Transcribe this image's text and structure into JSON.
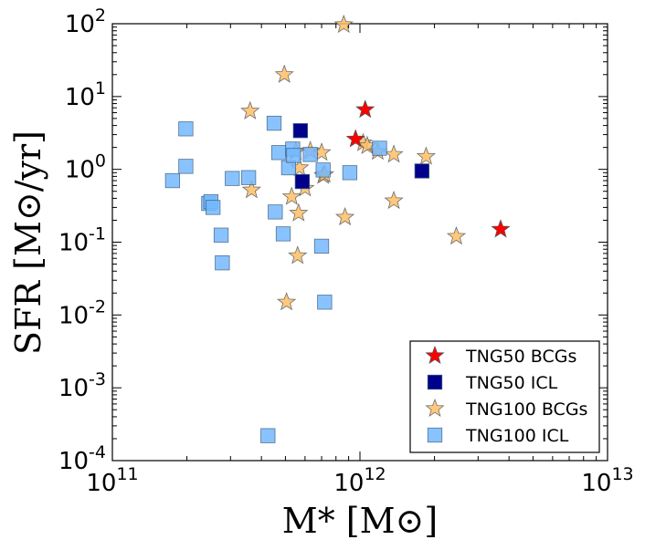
{
  "chart_data": {
    "type": "scatter",
    "title": "",
    "xlabel": "M* [M⊙]",
    "ylabel": "SFR [M⊙/yr]",
    "xscale": "log",
    "yscale": "log",
    "xlim": [
      100000000000.0,
      10000000000000.0
    ],
    "ylim": [
      0.0001,
      100
    ],
    "x_tick_labels": [
      {
        "value": 100000000000.0,
        "base": "10",
        "exp": "11"
      },
      {
        "value": 1000000000000.0,
        "base": "10",
        "exp": "12"
      },
      {
        "value": 10000000000000.0,
        "base": "10",
        "exp": "13"
      }
    ],
    "y_tick_labels": [
      {
        "value": 0.0001,
        "base": "10",
        "exp": "-4"
      },
      {
        "value": 0.001,
        "base": "10",
        "exp": "-3"
      },
      {
        "value": 0.01,
        "base": "10",
        "exp": "-2"
      },
      {
        "value": 0.1,
        "base": "10",
        "exp": "-1"
      },
      {
        "value": 1,
        "base": "10",
        "exp": "0"
      },
      {
        "value": 10,
        "base": "10",
        "exp": "1"
      },
      {
        "value": 100,
        "base": "10",
        "exp": "2"
      }
    ],
    "legend_position": "lower-right",
    "series": [
      {
        "name": "TNG50 BCGs",
        "marker": "star",
        "color": "#ff0000",
        "points": [
          [
            960000000000.0,
            2.6
          ],
          [
            1050000000000.0,
            6.6
          ],
          [
            3700000000000.0,
            0.15
          ]
        ]
      },
      {
        "name": "TNG50 ICL",
        "marker": "square",
        "color": "#00008b",
        "points": [
          [
            575000000000.0,
            3.4
          ],
          [
            585000000000.0,
            0.68
          ],
          [
            1780000000000.0,
            0.95
          ]
        ]
      },
      {
        "name": "TNG100 BCGs",
        "marker": "star",
        "color": "#ffbf66",
        "points": [
          [
            860000000000.0,
            97
          ],
          [
            495000000000.0,
            20
          ],
          [
            360000000000.0,
            6.3
          ],
          [
            365000000000.0,
            0.52
          ],
          [
            530000000000.0,
            0.42
          ],
          [
            570000000000.0,
            1.05
          ],
          [
            565000000000.0,
            0.25
          ],
          [
            600000000000.0,
            0.55
          ],
          [
            560000000000.0,
            0.065
          ],
          [
            505000000000.0,
            0.015
          ],
          [
            630000000000.0,
            1.8
          ],
          [
            700000000000.0,
            1.7
          ],
          [
            710000000000.0,
            0.82
          ],
          [
            720000000000.0,
            0.85
          ],
          [
            550000000000.0,
            1.75
          ],
          [
            870000000000.0,
            0.22
          ],
          [
            1030000000000.0,
            2.3
          ],
          [
            1070000000000.0,
            2.1
          ],
          [
            1180000000000.0,
            1.75
          ],
          [
            1370000000000.0,
            1.6
          ],
          [
            1370000000000.0,
            0.37
          ],
          [
            1850000000000.0,
            1.5
          ],
          [
            2450000000000.0,
            0.12
          ]
        ]
      },
      {
        "name": "TNG100 ICL",
        "marker": "square",
        "color": "#74b9ff",
        "points": [
          [
            175000000000.0,
            0.7
          ],
          [
            198000000000.0,
            3.6
          ],
          [
            198000000000.0,
            1.1
          ],
          [
            245000000000.0,
            0.34
          ],
          [
            250000000000.0,
            0.36
          ],
          [
            255000000000.0,
            0.3
          ],
          [
            275000000000.0,
            0.125
          ],
          [
            278000000000.0,
            0.052
          ],
          [
            305000000000.0,
            0.75
          ],
          [
            355000000000.0,
            0.77
          ],
          [
            450000000000.0,
            4.3
          ],
          [
            455000000000.0,
            0.26
          ],
          [
            470000000000.0,
            1.7
          ],
          [
            490000000000.0,
            0.13
          ],
          [
            515000000000.0,
            1.05
          ],
          [
            535000000000.0,
            1.9
          ],
          [
            540000000000.0,
            1.55
          ],
          [
            630000000000.0,
            1.6
          ],
          [
            700000000000.0,
            0.088
          ],
          [
            710000000000.0,
            0.98
          ],
          [
            720000000000.0,
            0.015
          ],
          [
            910000000000.0,
            0.9
          ],
          [
            1200000000000.0,
            1.95
          ],
          [
            425000000000.0,
            0.00022
          ]
        ]
      }
    ]
  }
}
